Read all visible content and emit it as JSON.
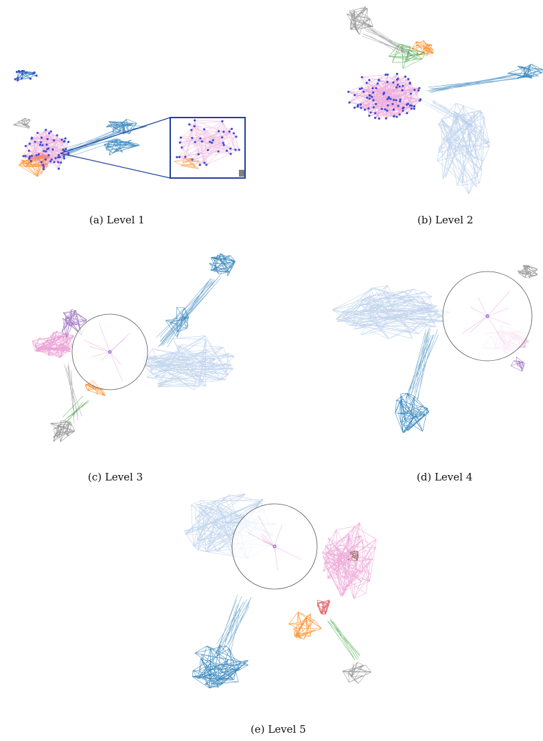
{
  "figure": {
    "panels": [
      {
        "id": "a",
        "caption": "(a) Level 1"
      },
      {
        "id": "b",
        "caption": "(b) Level 2"
      },
      {
        "id": "c",
        "caption": "(c) Level 3"
      },
      {
        "id": "d",
        "caption": "(d) Level 4"
      },
      {
        "id": "e",
        "caption": "(e) Level 5"
      }
    ]
  },
  "palette": {
    "blue": "#1f77b4",
    "light_blue": "#aec7e8",
    "pink": "#e377c2",
    "orange": "#ff7f0e",
    "gray": "#7f7f7f",
    "green": "#2ca02c",
    "purple": "#9467bd",
    "red": "#d62728",
    "brown": "#8c564b",
    "peach": "#ffbb78",
    "node_blue": "#3b4fd8",
    "inset_frame": "#1f3f99",
    "lens_stroke": "#555555"
  }
}
